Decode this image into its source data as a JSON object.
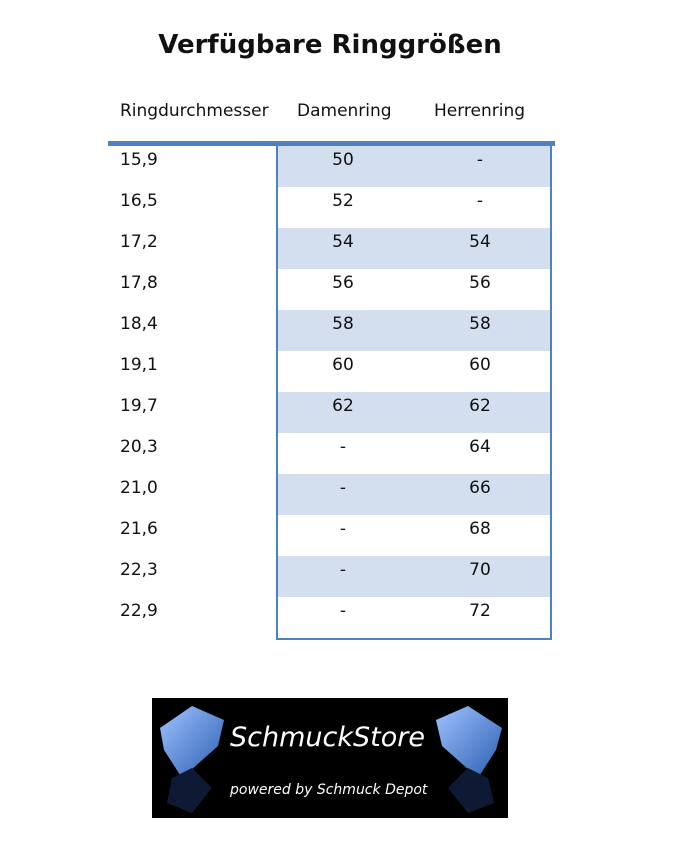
{
  "title": "Verfügbare Ringgrößen",
  "headers": [
    "Ringdurchmesser",
    "Damenring",
    "Herrenring"
  ],
  "rows": [
    [
      "15,9",
      "50",
      "-"
    ],
    [
      "16,5",
      "52",
      "-"
    ],
    [
      "17,2",
      "54",
      "54"
    ],
    [
      "17,8",
      "56",
      "56"
    ],
    [
      "18,4",
      "58",
      "58"
    ],
    [
      "19,1",
      "60",
      "60"
    ],
    [
      "19,7",
      "62",
      "62"
    ],
    [
      "20,3",
      "-",
      "64"
    ],
    [
      "21,0",
      "-",
      "66"
    ],
    [
      "21,6",
      "-",
      "68"
    ],
    [
      "22,3",
      "-",
      "70"
    ],
    [
      "22,9",
      "-",
      "72"
    ]
  ],
  "logo": {
    "name": "SchmuckStore",
    "tagline": "powered by Schmuck Depot"
  },
  "colors": {
    "accent": "#4f81bd",
    "stripe": "#d3dfee"
  }
}
